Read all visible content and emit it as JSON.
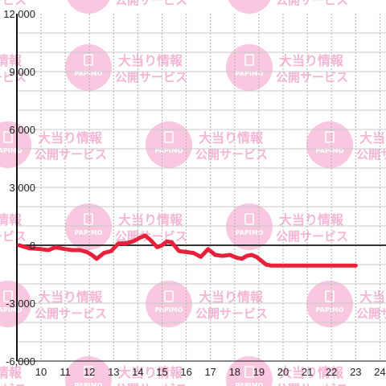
{
  "chart_data": {
    "type": "line",
    "title": "",
    "xlabel": "",
    "ylabel": "",
    "x_ticks": [
      "10",
      "11",
      "12",
      "13",
      "14",
      "15",
      "16",
      "17",
      "18",
      "19",
      "20",
      "21",
      "22",
      "23",
      "24"
    ],
    "y_ticks": [
      "12,000",
      "9,000",
      "6,000",
      "3,000",
      "0",
      "-3,000",
      "-6,000"
    ],
    "ylim": [
      -6000,
      12000
    ],
    "xlim": [
      9,
      24.3
    ],
    "grid": true,
    "line_color": "#e8213a",
    "series": [
      {
        "x": [
          9.1,
          9.5,
          10.0,
          10.3,
          10.6,
          11.0,
          11.3,
          11.6,
          11.9,
          12.1,
          12.3,
          12.6,
          12.9,
          13.2,
          13.5,
          13.8,
          14.1,
          14.3,
          14.5,
          14.8,
          15.0,
          15.2,
          15.4,
          15.7,
          16.0,
          16.3,
          16.6,
          16.9,
          17.2,
          17.5,
          17.8,
          18.1,
          18.3,
          18.5,
          18.7,
          18.9,
          19.1,
          19.3,
          19.5,
          20.0,
          21.0,
          22.0,
          23.0
        ],
        "y": [
          0,
          -150,
          -200,
          -250,
          -100,
          -200,
          -250,
          -250,
          -350,
          -500,
          -700,
          -400,
          -300,
          100,
          100,
          200,
          400,
          500,
          300,
          -100,
          0,
          200,
          150,
          -300,
          -350,
          -400,
          -600,
          -200,
          -500,
          -550,
          -500,
          -650,
          -700,
          -550,
          -500,
          -600,
          -800,
          -1000,
          -1050,
          -1050,
          -1050,
          -1050,
          -1050
        ]
      }
    ],
    "watermark": {
      "logo_text": "PAPIMO",
      "line1": "大当り情報",
      "line2": "公開サービス",
      "color": "#f7b5d6"
    }
  }
}
